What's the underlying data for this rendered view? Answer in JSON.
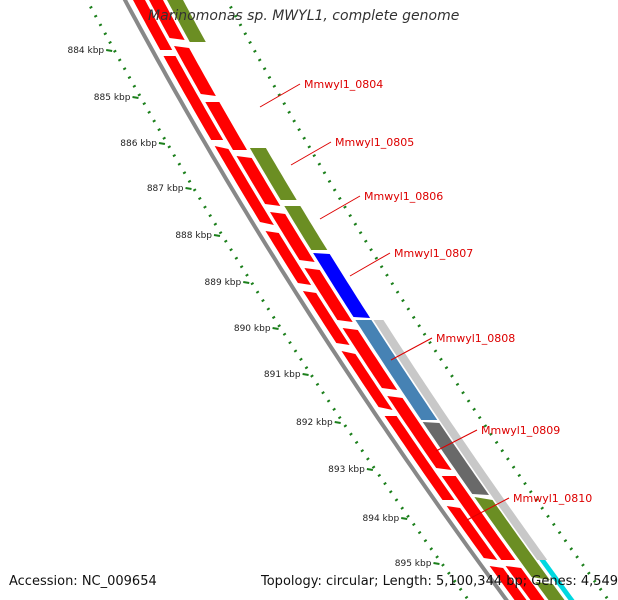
{
  "title": "Marinomonas sp. MWYL1, complete genome",
  "accession": "Accession: NC_009654",
  "summary": "Topology: circular; Length: 5,100,344 bp; Genes: 4,549",
  "ticks": [
    "884 kbp",
    "885 kbp",
    "886 kbp",
    "887 kbp",
    "888 kbp",
    "889 kbp",
    "890 kbp",
    "891 kbp",
    "892 kbp",
    "893 kbp",
    "894 kbp",
    "895 kbp"
  ],
  "gene_labels": [
    "Mmwyl1_0804",
    "Mmwyl1_0805",
    "Mmwyl1_0806",
    "Mmwyl1_0807",
    "Mmwyl1_0808",
    "Mmwyl1_0809",
    "Mmwyl1_0810"
  ],
  "colors": {
    "gene_red": "#ff0000",
    "gene_olive": "#6b8e23",
    "gene_blue": "#0000ff",
    "gene_steel": "#4682b4",
    "gene_dimgray": "#696969",
    "gene_lightgray": "#c8c8c8",
    "gene_cyan": "#00d8e0",
    "backbone": "#888888",
    "dots": "#1b7f1b",
    "label": "#dd0000"
  }
}
